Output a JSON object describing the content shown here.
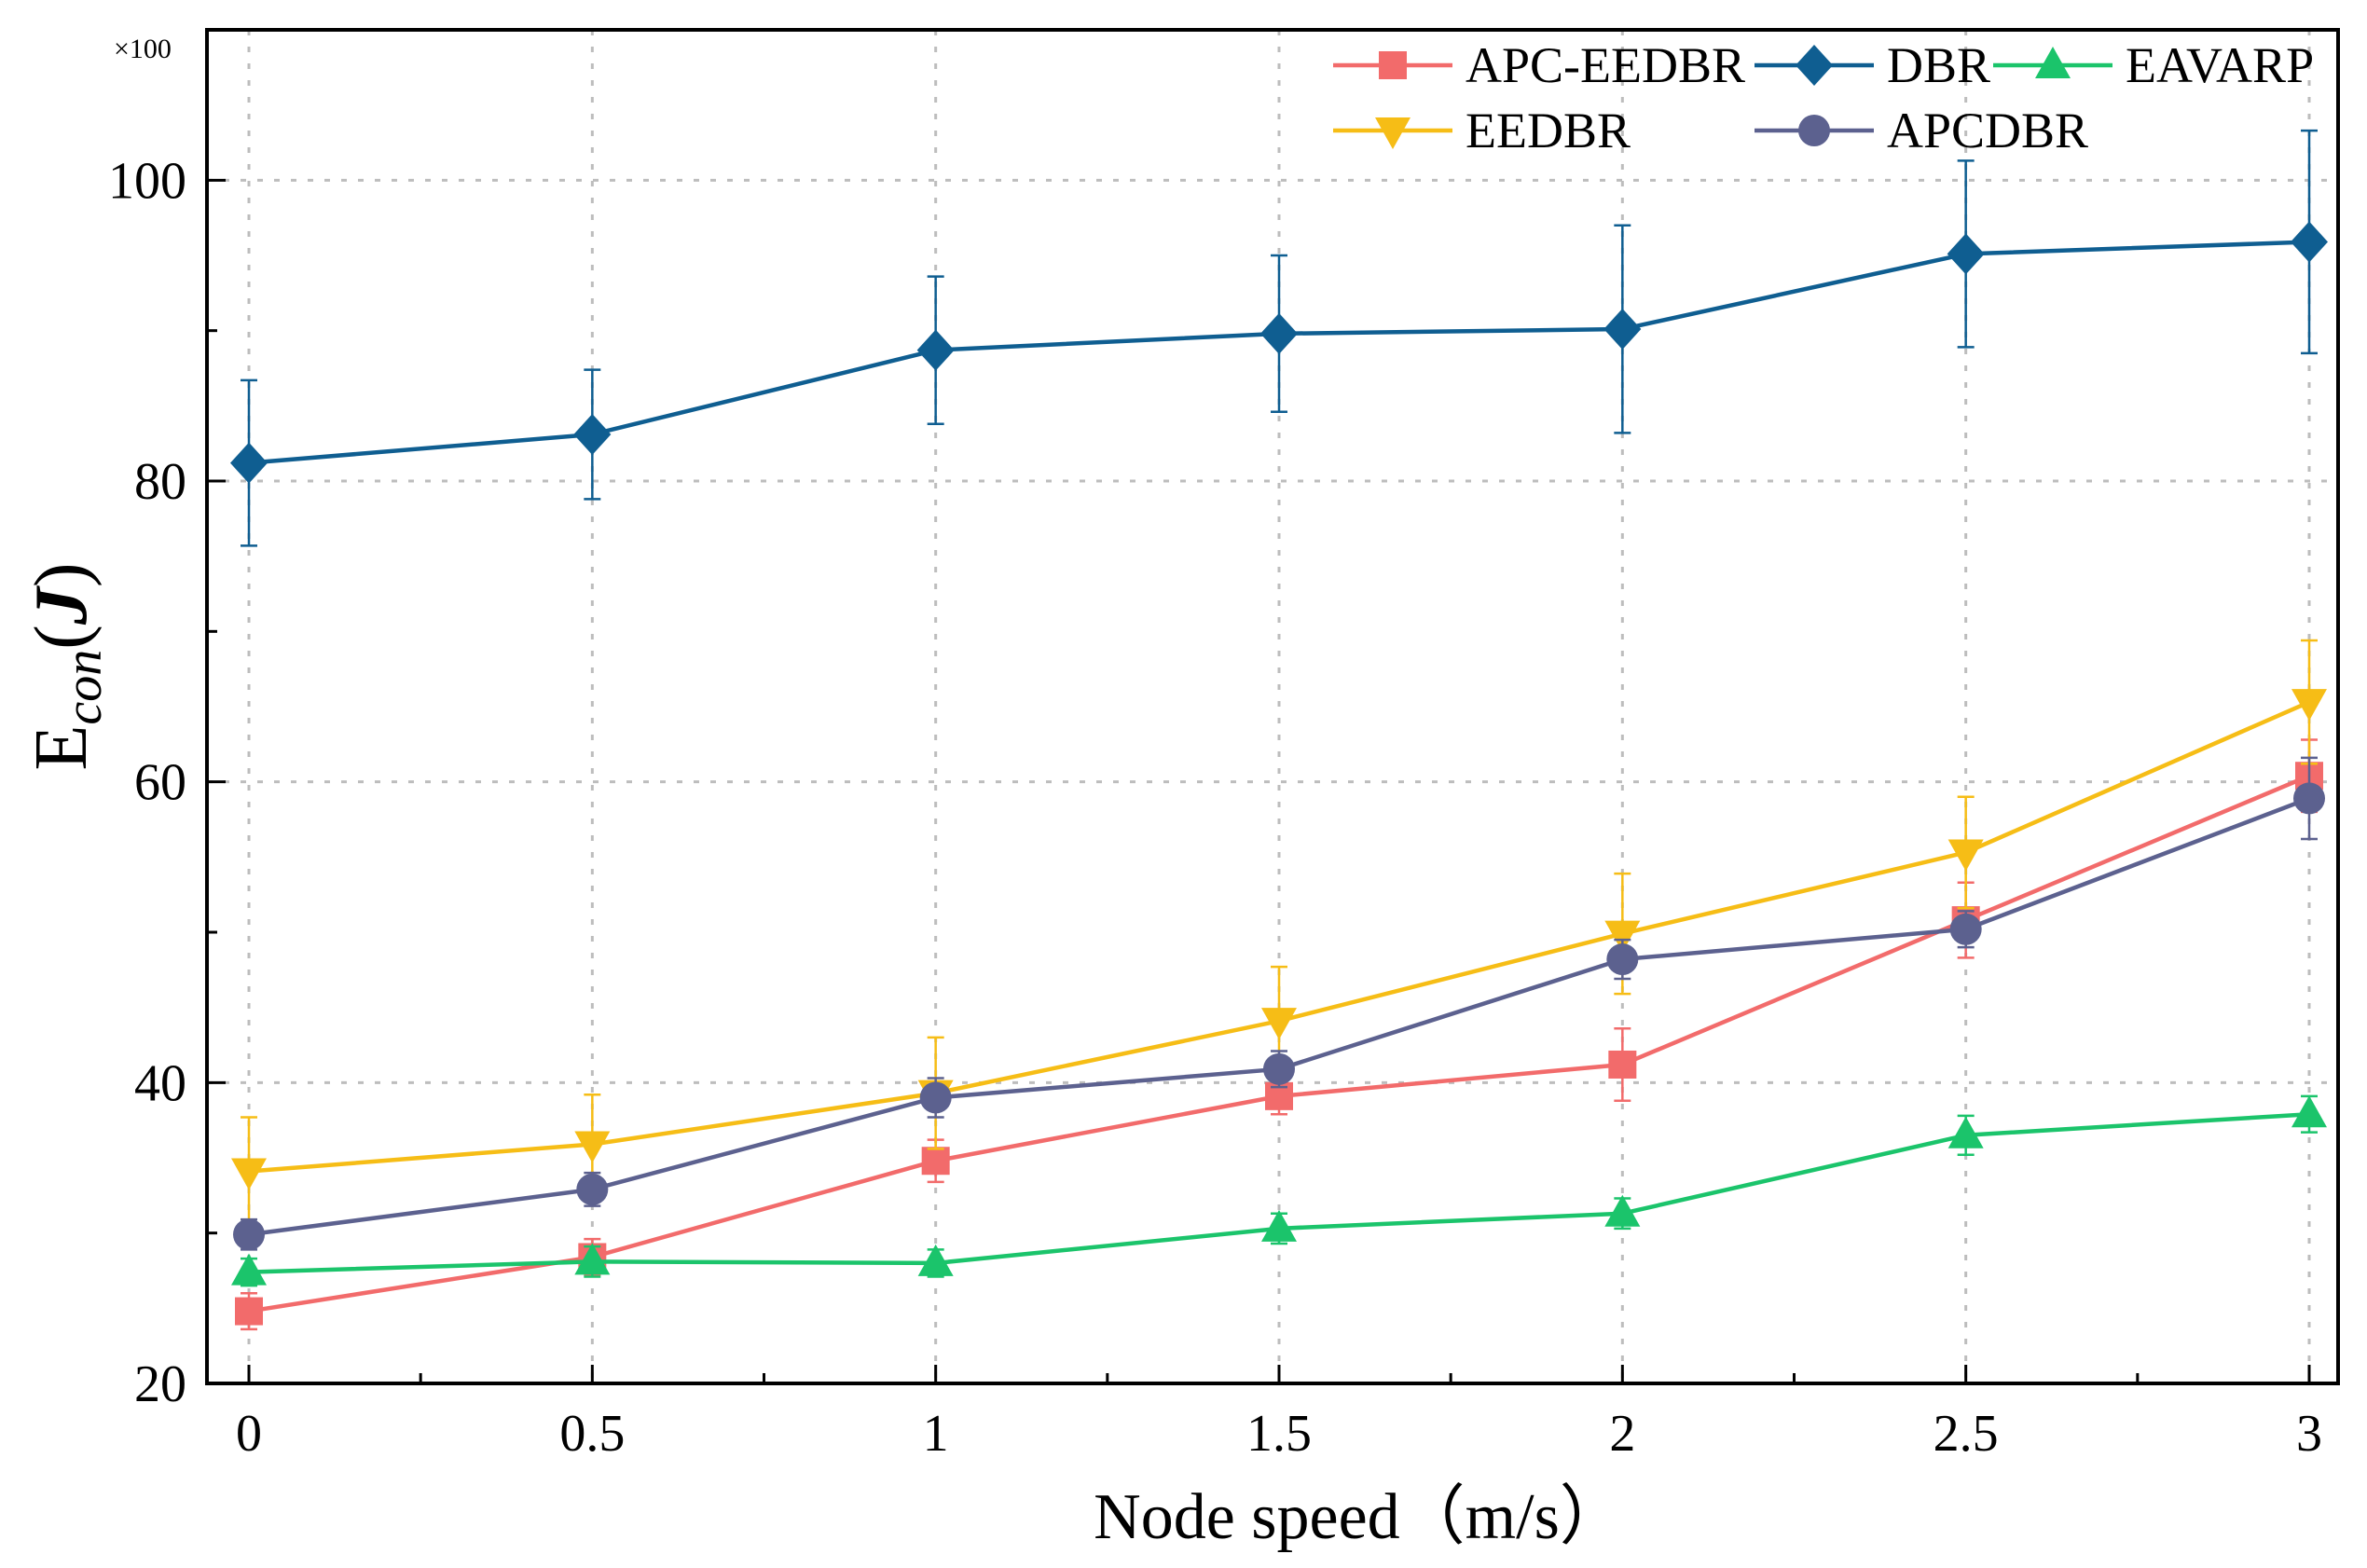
{
  "chart_data": {
    "type": "line",
    "title": "",
    "xlabel": "Node speed（m/s）",
    "ylabel_main": "E",
    "ylabel_sub": "con",
    "ylabel_unit_open": "(",
    "ylabel_unit": "J",
    "ylabel_unit_close": ")",
    "y_multiplier": "×100",
    "x": [
      0,
      0.5,
      1,
      1.5,
      2,
      2.5,
      3
    ],
    "xtick_labels": [
      "0",
      "0.5",
      "1",
      "1.5",
      "2",
      "2.5",
      "3"
    ],
    "ytick_values": [
      20,
      40,
      60,
      80,
      100
    ],
    "ytick_labels": [
      "20",
      "40",
      "60",
      "80",
      "100"
    ],
    "xlim": [
      -0.05,
      3.05
    ],
    "ylim": [
      20,
      110
    ],
    "grid": true,
    "legend_position": "top-right",
    "series": [
      {
        "name": "APC-EEDBR",
        "color": "#f26b6b",
        "marker": "square",
        "values": [
          24.8,
          28.4,
          34.8,
          39.1,
          41.2,
          50.8,
          60.4
        ],
        "errors": [
          1.2,
          1.2,
          1.4,
          1.2,
          2.4,
          2.5,
          2.4
        ]
      },
      {
        "name": "DBR",
        "color": "#0f5e91",
        "marker": "diamond",
        "values": [
          81.2,
          83.1,
          88.7,
          89.8,
          90.1,
          95.1,
          95.9
        ],
        "errors": [
          5.5,
          4.3,
          4.9,
          5.2,
          6.9,
          6.2,
          7.4
        ]
      },
      {
        "name": "EAVARP",
        "color": "#1bc46b",
        "marker": "triangle-up",
        "values": [
          27.4,
          28.1,
          28.0,
          30.3,
          31.3,
          36.5,
          37.9
        ],
        "errors": [
          0.9,
          1.0,
          0.9,
          1.0,
          1.0,
          1.3,
          1.2
        ]
      },
      {
        "name": "EEDBR",
        "color": "#f6bd16",
        "marker": "triangle-down",
        "values": [
          34.1,
          35.9,
          39.3,
          44.1,
          49.9,
          55.3,
          65.3
        ],
        "errors": [
          3.6,
          3.3,
          3.7,
          3.6,
          4.0,
          3.7,
          4.1
        ]
      },
      {
        "name": "APCDBR",
        "color": "#5c618f",
        "marker": "circle",
        "values": [
          29.9,
          32.9,
          39.0,
          40.9,
          48.2,
          50.2,
          58.9
        ],
        "errors": [
          1.0,
          1.1,
          1.3,
          1.2,
          1.3,
          1.2,
          2.7
        ]
      }
    ]
  }
}
